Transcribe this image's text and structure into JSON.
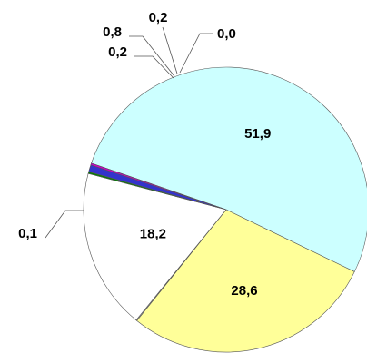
{
  "chart_data": {
    "type": "pie",
    "title": "",
    "slices": [
      {
        "label": "51,9",
        "value": 51.9,
        "color": "#ccffff"
      },
      {
        "label": "28,6",
        "value": 28.6,
        "color": "#ffff99"
      },
      {
        "label": "0,1",
        "value": 0.1,
        "color": "#c0c0c0"
      },
      {
        "label": "18,2",
        "value": 18.2,
        "color": "#ffffff"
      },
      {
        "label": "0,2",
        "value": 0.2,
        "color": "#008000"
      },
      {
        "label": "0,8",
        "value": 0.8,
        "color": "#3333cc"
      },
      {
        "label": "0,2",
        "value": 0.2,
        "color": "#cc00cc"
      },
      {
        "label": "0,0",
        "value": 0.0,
        "color": "#ff0000"
      }
    ]
  }
}
